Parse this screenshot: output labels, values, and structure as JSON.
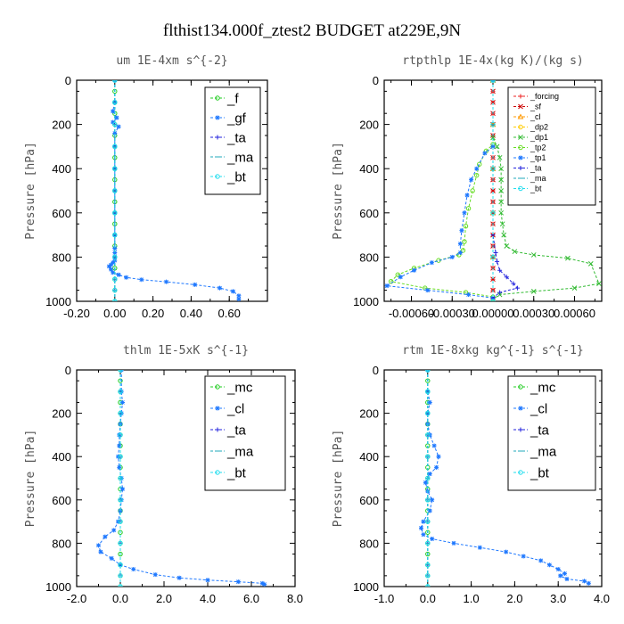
{
  "figure": {
    "title": "flthist134.000f_ztest2  BUDGET at229E,9N"
  },
  "chart_data": [
    {
      "type": "line",
      "title": "um  1E-4xm s^{-2}",
      "xlabel": "",
      "ylabel": "Pressure [hPa]",
      "xlim": [
        -0.2,
        0.8
      ],
      "ylim": [
        1000,
        0
      ],
      "xticks": [
        "-0.20",
        "0.00",
        "0.20",
        "0.40",
        "0.60"
      ],
      "yticks": [
        "0",
        "200",
        "400",
        "600",
        "800",
        "1000"
      ],
      "legend_position": "top-right",
      "series": [
        {
          "name": "_f",
          "color": "#22cc22",
          "marker": "o",
          "x": [
            0,
            0,
            0,
            0,
            0,
            0,
            0,
            0,
            0,
            0,
            0,
            0,
            0,
            0,
            0,
            0,
            0,
            0,
            0,
            0,
            0
          ],
          "y": [
            0,
            50,
            100,
            150,
            200,
            250,
            300,
            350,
            400,
            450,
            500,
            550,
            600,
            650,
            700,
            750,
            800,
            850,
            900,
            950,
            1000
          ]
        },
        {
          "name": "_gf",
          "color": "#1e78ff",
          "marker": "*",
          "x": [
            0.0,
            0.0,
            -0.01,
            0.01,
            -0.01,
            0.02,
            0.0,
            0.0,
            0.0,
            0.0,
            0.0,
            0.0,
            0.0,
            0.0,
            0.0,
            0.0,
            -0.01,
            -0.02,
            -0.03,
            -0.02,
            -0.01,
            0.02,
            0.06,
            0.14,
            0.27,
            0.42,
            0.55,
            0.62,
            0.65,
            0.65
          ],
          "y": [
            0,
            100,
            140,
            170,
            190,
            210,
            240,
            300,
            400,
            500,
            600,
            700,
            760,
            780,
            800,
            815,
            825,
            835,
            842,
            856,
            870,
            880,
            892,
            902,
            912,
            925,
            940,
            955,
            975,
            990
          ]
        },
        {
          "name": "_ta",
          "color": "#2222dd",
          "marker": "+",
          "x": [
            0,
            0,
            0,
            0,
            0,
            0,
            0,
            0,
            0,
            0,
            0,
            0
          ],
          "y": [
            0,
            100,
            200,
            300,
            400,
            500,
            600,
            700,
            800,
            900,
            950,
            1000
          ]
        },
        {
          "name": "_ma",
          "color": "#22aabb",
          "marker": "-",
          "x": [
            0,
            0,
            0,
            0,
            0,
            0,
            0,
            0,
            0,
            0,
            0,
            0
          ],
          "y": [
            0,
            100,
            200,
            300,
            400,
            500,
            600,
            700,
            800,
            900,
            950,
            1000
          ]
        },
        {
          "name": "_bt",
          "color": "#22ddee",
          "marker": "o",
          "x": [
            0,
            0,
            0,
            0,
            0,
            0,
            0,
            0,
            0,
            0,
            0,
            0
          ],
          "y": [
            0,
            100,
            200,
            300,
            400,
            500,
            600,
            700,
            800,
            900,
            950,
            1000
          ]
        }
      ]
    },
    {
      "type": "line",
      "title": "rtpthlp  1E-4x(kg K)/(kg s)",
      "xlabel": "",
      "ylabel": "Pressure [hPa]",
      "xlim": [
        -0.0008,
        0.0008
      ],
      "ylim": [
        1000,
        0
      ],
      "xticks": [
        "-0.00060",
        "-0.00030",
        "0.00000",
        "0.00030",
        "0.00060"
      ],
      "yticks": [
        "0",
        "200",
        "400",
        "600",
        "800",
        "1000"
      ],
      "legend_position": "top-right",
      "series": [
        {
          "name": "_forcing",
          "color": "#ee2222",
          "marker": "+",
          "x": [
            0,
            0,
            0,
            0,
            0,
            0,
            0,
            0,
            0,
            0,
            0,
            0,
            0,
            0,
            0,
            0,
            0,
            0,
            0,
            0,
            0
          ],
          "y": [
            0,
            50,
            100,
            150,
            200,
            250,
            300,
            350,
            400,
            450,
            500,
            550,
            600,
            650,
            700,
            750,
            800,
            850,
            900,
            950,
            1000
          ]
        },
        {
          "name": "_sf",
          "color": "#cc0000",
          "marker": "x",
          "x": [
            0,
            0,
            0,
            0,
            0,
            0,
            0,
            0,
            0,
            0,
            0,
            0,
            0,
            0,
            0,
            0,
            0,
            0,
            0,
            0,
            0
          ],
          "y": [
            0,
            50,
            100,
            150,
            200,
            250,
            300,
            350,
            400,
            450,
            500,
            550,
            600,
            650,
            700,
            750,
            800,
            850,
            900,
            950,
            1000
          ]
        },
        {
          "name": "_cl",
          "color": "#ff9900",
          "marker": "^",
          "x": [
            0,
            0,
            0,
            0,
            0,
            0
          ],
          "y": [
            0,
            200,
            400,
            600,
            800,
            1000
          ]
        },
        {
          "name": "_dp2",
          "color": "#ffcc00",
          "marker": "o",
          "x": [
            0,
            0,
            0,
            0,
            0,
            0
          ],
          "y": [
            0,
            200,
            400,
            600,
            800,
            1000
          ]
        },
        {
          "name": "_dp1",
          "color": "#33bb33",
          "marker": "x",
          "x": [
            0,
            0,
            3e-05,
            5e-05,
            6e-05,
            6e-05,
            6e-05,
            6e-05,
            6e-05,
            7e-05,
            8e-05,
            0.0001,
            0.00016,
            0.0003,
            0.00055,
            0.00072,
            0.00078,
            0.0006,
            0.0003,
            5e-05,
            0
          ],
          "y": [
            0,
            260,
            300,
            350,
            400,
            450,
            500,
            550,
            600,
            650,
            700,
            750,
            775,
            790,
            805,
            830,
            920,
            940,
            955,
            970,
            990
          ]
        },
        {
          "name": "_tp2",
          "color": "#66dd22",
          "marker": "o",
          "x": [
            0,
            0,
            -5e-05,
            -0.0001,
            -0.00012,
            -0.00015,
            -0.00018,
            -0.0002,
            -0.00021,
            -0.00022,
            -0.00025,
            -0.0004,
            -0.00058,
            -0.0007,
            -0.00075,
            -0.0005,
            -0.0002,
            0
          ],
          "y": [
            0,
            290,
            320,
            380,
            430,
            500,
            580,
            660,
            730,
            770,
            790,
            815,
            850,
            880,
            910,
            940,
            960,
            980
          ]
        },
        {
          "name": "_tp1",
          "color": "#1e78ff",
          "marker": "*",
          "x": [
            0,
            0,
            -6e-05,
            -0.00012,
            -0.00016,
            -0.00019,
            -0.00021,
            -0.00023,
            -0.00024,
            -0.00024,
            -0.0003,
            -0.00045,
            -0.00058,
            -0.00068,
            -0.00078,
            -0.00048,
            -0.00018,
            0
          ],
          "y": [
            0,
            300,
            330,
            400,
            450,
            520,
            600,
            680,
            740,
            780,
            800,
            825,
            860,
            890,
            930,
            950,
            970,
            985
          ]
        },
        {
          "name": "_ta",
          "color": "#2222dd",
          "marker": "+",
          "x": [
            0,
            0,
            2e-05,
            3e-05,
            5e-05,
            0.0001,
            0.00015,
            0.00018,
            5e-05,
            0
          ],
          "y": [
            0,
            700,
            780,
            820,
            860,
            890,
            920,
            940,
            960,
            985
          ]
        },
        {
          "name": "_ma",
          "color": "#22aabb",
          "marker": "-",
          "x": [
            0,
            0,
            0,
            0,
            0,
            0
          ],
          "y": [
            0,
            200,
            400,
            600,
            800,
            1000
          ]
        },
        {
          "name": "_bt",
          "color": "#22ddee",
          "marker": "o",
          "x": [
            0,
            0,
            0,
            0,
            0,
            0
          ],
          "y": [
            0,
            200,
            400,
            600,
            800,
            1000
          ]
        }
      ]
    },
    {
      "type": "line",
      "title": "thlm  1E-5xK s^{-1}",
      "xlabel": "",
      "ylabel": "Pressure [hPa]",
      "xlim": [
        -2.0,
        8.0
      ],
      "ylim": [
        1000,
        0
      ],
      "xticks": [
        "-2.0",
        "0.0",
        "2.0",
        "4.0",
        "6.0",
        "8.0"
      ],
      "yticks": [
        "0",
        "200",
        "400",
        "600",
        "800",
        "1000"
      ],
      "legend_position": "top-right",
      "series": [
        {
          "name": "_mc",
          "color": "#22cc22",
          "marker": "o",
          "x": [
            0,
            0,
            0,
            0,
            0,
            0,
            0,
            0,
            0,
            0,
            0,
            0,
            0,
            0,
            0,
            0,
            0,
            0,
            0,
            0,
            0
          ],
          "y": [
            0,
            50,
            100,
            150,
            200,
            250,
            300,
            350,
            400,
            450,
            500,
            550,
            600,
            650,
            700,
            750,
            800,
            850,
            900,
            950,
            1000
          ]
        },
        {
          "name": "_cl",
          "color": "#1e78ff",
          "marker": "*",
          "x": [
            0.05,
            0.05,
            0.1,
            0.05,
            0.0,
            -0.05,
            -0.05,
            -0.1,
            -0.05,
            0.05,
            0.1,
            0.05,
            0.0,
            -0.1,
            -0.3,
            -0.7,
            -1.0,
            -0.9,
            -0.4,
            0.0,
            0.6,
            1.6,
            2.7,
            4.0,
            5.4,
            6.5,
            6.6
          ],
          "y": [
            0,
            100,
            150,
            200,
            250,
            300,
            350,
            400,
            450,
            500,
            550,
            600,
            650,
            700,
            740,
            770,
            810,
            840,
            870,
            900,
            920,
            945,
            960,
            970,
            978,
            985,
            990
          ]
        },
        {
          "name": "_ta",
          "color": "#2222dd",
          "marker": "+",
          "x": [
            0,
            0,
            0,
            0,
            0,
            0,
            0,
            0,
            0,
            0,
            0,
            0
          ],
          "y": [
            0,
            100,
            200,
            300,
            400,
            500,
            600,
            700,
            800,
            900,
            950,
            1000
          ]
        },
        {
          "name": "_ma",
          "color": "#22aabb",
          "marker": "-",
          "x": [
            0,
            0,
            0,
            0,
            0,
            0,
            0,
            0,
            0,
            0,
            0,
            0
          ],
          "y": [
            0,
            100,
            200,
            300,
            400,
            500,
            600,
            700,
            800,
            900,
            950,
            1000
          ]
        },
        {
          "name": "_bt",
          "color": "#22ddee",
          "marker": "o",
          "x": [
            0,
            0,
            0,
            0,
            0,
            0,
            0,
            0,
            0,
            0,
            0,
            0
          ],
          "y": [
            0,
            100,
            200,
            300,
            400,
            500,
            600,
            700,
            800,
            900,
            950,
            1000
          ]
        }
      ]
    },
    {
      "type": "line",
      "title": "rtm  1E-8xkg kg^{-1} s^{-1}",
      "xlabel": "",
      "ylabel": "Pressure [hPa]",
      "xlim": [
        -1.0,
        4.0
      ],
      "ylim": [
        1000,
        0
      ],
      "xticks": [
        "-1.0",
        "0.0",
        "1.0",
        "2.0",
        "3.0",
        "4.0"
      ],
      "yticks": [
        "0",
        "200",
        "400",
        "600",
        "800",
        "1000"
      ],
      "legend_position": "top-right",
      "series": [
        {
          "name": "_mc",
          "color": "#22cc22",
          "marker": "o",
          "x": [
            0,
            0,
            0,
            0,
            0,
            0,
            0,
            0,
            0,
            0,
            0,
            0,
            0,
            0,
            0,
            0,
            0,
            0,
            0,
            0,
            0
          ],
          "y": [
            0,
            50,
            100,
            150,
            200,
            250,
            300,
            350,
            400,
            450,
            500,
            550,
            600,
            650,
            700,
            750,
            800,
            850,
            900,
            950,
            1000
          ]
        },
        {
          "name": "_cl",
          "color": "#1e78ff",
          "marker": "*",
          "x": [
            0.0,
            0.0,
            0.05,
            0.0,
            0.0,
            0.05,
            0.15,
            0.25,
            0.2,
            0.05,
            -0.05,
            0.0,
            0.1,
            0.05,
            -0.1,
            -0.15,
            -0.1,
            0.1,
            0.6,
            1.2,
            1.8,
            2.2,
            2.6,
            2.8,
            3.0,
            3.15,
            3.05,
            3.2,
            3.6,
            3.7
          ],
          "y": [
            0,
            100,
            150,
            200,
            250,
            300,
            350,
            400,
            450,
            480,
            520,
            560,
            600,
            650,
            700,
            730,
            760,
            780,
            800,
            820,
            840,
            860,
            880,
            900,
            920,
            940,
            950,
            965,
            975,
            985
          ]
        },
        {
          "name": "_ta",
          "color": "#2222dd",
          "marker": "+",
          "x": [
            0,
            0,
            0,
            0,
            0,
            0,
            0,
            0,
            0,
            0,
            0,
            0
          ],
          "y": [
            0,
            100,
            200,
            300,
            400,
            500,
            600,
            700,
            800,
            900,
            950,
            1000
          ]
        },
        {
          "name": "_ma",
          "color": "#22aabb",
          "marker": "-",
          "x": [
            0,
            0,
            0,
            0,
            0,
            0,
            0,
            0,
            0,
            0,
            0,
            0
          ],
          "y": [
            0,
            100,
            200,
            300,
            400,
            500,
            600,
            700,
            800,
            900,
            950,
            1000
          ]
        },
        {
          "name": "_bt",
          "color": "#22ddee",
          "marker": "o",
          "x": [
            0,
            0,
            0,
            0,
            0,
            0,
            0,
            0,
            0,
            0,
            0,
            0
          ],
          "y": [
            0,
            100,
            200,
            300,
            400,
            500,
            600,
            700,
            800,
            900,
            950,
            1000
          ]
        }
      ]
    }
  ]
}
